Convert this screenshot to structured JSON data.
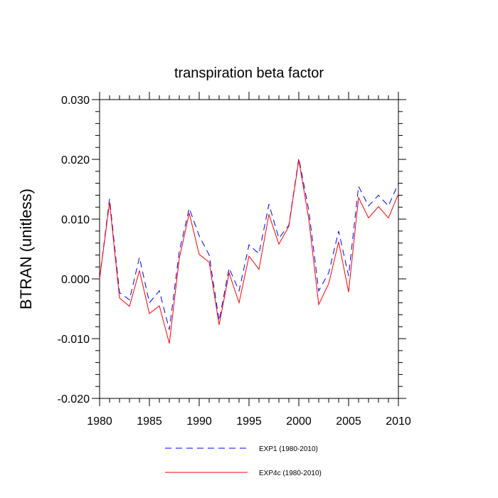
{
  "chart_data": {
    "type": "line",
    "title": "transpiration beta factor",
    "xlabel": "",
    "ylabel": "BTRAN  (unitless)",
    "xlim": [
      1980,
      2010
    ],
    "ylim": [
      -0.02,
      0.03
    ],
    "x_ticks": [
      1980,
      1985,
      1990,
      1995,
      2000,
      2005,
      2010
    ],
    "x_tick_labels": [
      "1980",
      "1985",
      "1990",
      "1995",
      "2000",
      "2005",
      "2010"
    ],
    "y_ticks": [
      -0.02,
      -0.01,
      0.0,
      0.01,
      0.02,
      0.03
    ],
    "y_tick_labels": [
      "-0.020",
      "-0.010",
      "0.000",
      "0.010",
      "0.020",
      "0.030"
    ],
    "grid": false,
    "legend_position": "bottom",
    "x": [
      1980,
      1981,
      1982,
      1983,
      1984,
      1985,
      1986,
      1987,
      1988,
      1989,
      1990,
      1991,
      1992,
      1993,
      1994,
      1995,
      1996,
      1997,
      1998,
      1999,
      2000,
      2001,
      2002,
      2003,
      2004,
      2005,
      2006,
      2007,
      2008,
      2009,
      2010
    ],
    "series": [
      {
        "name": "EXP1 (1980-2010)",
        "color": "#0000ff",
        "dash": "dashed",
        "values": [
          0.0,
          0.0134,
          -0.0023,
          -0.0035,
          0.0036,
          -0.004,
          -0.002,
          -0.0085,
          0.0046,
          0.0118,
          0.0072,
          0.004,
          -0.007,
          0.0018,
          -0.002,
          0.0057,
          0.0042,
          0.0125,
          0.0068,
          0.009,
          0.0202,
          0.0115,
          -0.002,
          0.001,
          0.008,
          0.0005,
          0.0155,
          0.0122,
          0.014,
          0.0122,
          0.016
        ]
      },
      {
        "name": "EXP4c (1980-2010)",
        "color": "#ff0000",
        "dash": "solid",
        "values": [
          0.0,
          0.0128,
          -0.0032,
          -0.0046,
          0.0014,
          -0.0058,
          -0.0045,
          -0.0108,
          0.0034,
          0.011,
          0.0041,
          0.0028,
          -0.0077,
          0.001,
          -0.004,
          0.0038,
          0.0016,
          0.0108,
          0.0058,
          0.0088,
          0.0199,
          0.01,
          -0.0043,
          -0.0008,
          0.0062,
          -0.0022,
          0.0136,
          0.0102,
          0.0121,
          0.0102,
          0.0142
        ]
      }
    ]
  }
}
